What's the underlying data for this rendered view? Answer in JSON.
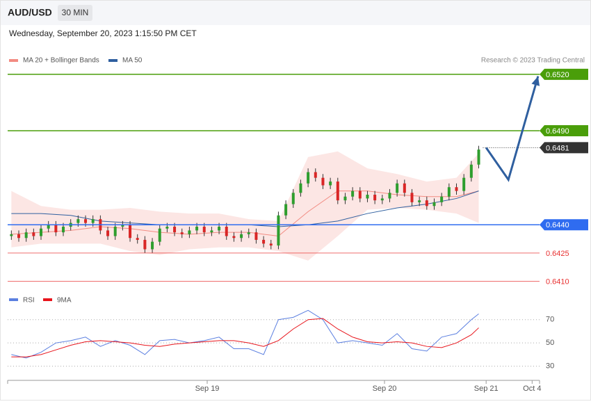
{
  "chart_data": [
    {
      "type": "candlestick",
      "title": "AUD/USD",
      "timeframe": "30 MIN",
      "subtitle": "Wednesday, September 20, 2023 1:15:50 PM CET",
      "credit": "Research © 2023 Trading Central",
      "up_color": "#2e9e2e",
      "down_color": "#d92626",
      "open": [
        0.6434,
        0.6435,
        0.6433,
        0.6436,
        0.6434,
        0.6438,
        0.644,
        0.6436,
        0.6439,
        0.6441,
        0.6443,
        0.6441,
        0.6443,
        0.6437,
        0.6434,
        0.6439,
        0.644,
        0.6433,
        0.6432,
        0.6427,
        0.6431,
        0.6438,
        0.6439,
        0.6436,
        0.6435,
        0.6437,
        0.6439,
        0.6436,
        0.6437,
        0.6439,
        0.6434,
        0.6433,
        0.6435,
        0.6436,
        0.6432,
        0.643,
        0.6429,
        0.6445,
        0.6451,
        0.6457,
        0.6462,
        0.6468,
        0.6465,
        0.6461,
        0.6463,
        0.6453,
        0.6455,
        0.6458,
        0.6454,
        0.6456,
        0.6453,
        0.6454,
        0.6457,
        0.6462,
        0.6457,
        0.6452,
        0.6453,
        0.645,
        0.6452,
        0.6455,
        0.646,
        0.6458,
        0.6465,
        0.6472
      ],
      "high": [
        0.6437,
        0.6437,
        0.6438,
        0.6438,
        0.644,
        0.6442,
        0.6442,
        0.6441,
        0.6443,
        0.6445,
        0.6445,
        0.6445,
        0.6445,
        0.6439,
        0.6441,
        0.6442,
        0.6442,
        0.6435,
        0.6434,
        0.6433,
        0.644,
        0.6441,
        0.6441,
        0.6438,
        0.6439,
        0.6441,
        0.6441,
        0.6439,
        0.6441,
        0.6441,
        0.6436,
        0.6437,
        0.6438,
        0.6438,
        0.6434,
        0.6432,
        0.6447,
        0.6453,
        0.6459,
        0.6464,
        0.647,
        0.647,
        0.6467,
        0.6465,
        0.6465,
        0.6457,
        0.646,
        0.646,
        0.6458,
        0.6458,
        0.6456,
        0.6459,
        0.6464,
        0.6464,
        0.6459,
        0.6455,
        0.6455,
        0.6454,
        0.6457,
        0.6462,
        0.6462,
        0.6467,
        0.6474,
        0.6482
      ],
      "low": [
        0.6432,
        0.6431,
        0.6431,
        0.6432,
        0.6432,
        0.6436,
        0.6434,
        0.6434,
        0.6437,
        0.6439,
        0.6439,
        0.6439,
        0.6435,
        0.6432,
        0.6432,
        0.6437,
        0.6431,
        0.643,
        0.6425,
        0.6425,
        0.6429,
        0.6436,
        0.6434,
        0.6433,
        0.6433,
        0.6435,
        0.6434,
        0.6434,
        0.6435,
        0.6432,
        0.6431,
        0.6431,
        0.6433,
        0.643,
        0.6428,
        0.6427,
        0.6427,
        0.6443,
        0.6449,
        0.6455,
        0.646,
        0.6463,
        0.6459,
        0.6459,
        0.6451,
        0.6451,
        0.6453,
        0.6452,
        0.6452,
        0.6451,
        0.6451,
        0.6452,
        0.6455,
        0.6455,
        0.645,
        0.645,
        0.6448,
        0.6448,
        0.645,
        0.6453,
        0.6456,
        0.6456,
        0.6463,
        0.647
      ],
      "close": [
        0.6435,
        0.6433,
        0.6436,
        0.6434,
        0.6438,
        0.644,
        0.6436,
        0.6439,
        0.6441,
        0.6443,
        0.6441,
        0.6443,
        0.6437,
        0.6434,
        0.6439,
        0.644,
        0.6433,
        0.6432,
        0.6427,
        0.6431,
        0.6438,
        0.6439,
        0.6436,
        0.6435,
        0.6437,
        0.6439,
        0.6436,
        0.6437,
        0.6439,
        0.6434,
        0.6433,
        0.6435,
        0.6436,
        0.6432,
        0.643,
        0.6429,
        0.6445,
        0.6451,
        0.6457,
        0.6462,
        0.6468,
        0.6465,
        0.6461,
        0.6463,
        0.6453,
        0.6455,
        0.6458,
        0.6454,
        0.6456,
        0.6453,
        0.6454,
        0.6457,
        0.6462,
        0.6457,
        0.6452,
        0.6453,
        0.645,
        0.6452,
        0.6455,
        0.646,
        0.6458,
        0.6465,
        0.6472,
        0.648
      ],
      "series": [
        {
          "name": "MA 20 + Bollinger Bands",
          "color": "#f28b82",
          "x": [
            0,
            4,
            8,
            12,
            16,
            20,
            24,
            28,
            32,
            36,
            40,
            44,
            48,
            52,
            56,
            60,
            63
          ],
          "values": [
            0.6435,
            0.6436,
            0.6437,
            0.6439,
            0.6438,
            0.6436,
            0.6435,
            0.6436,
            0.6436,
            0.6434,
            0.6447,
            0.6458,
            0.6458,
            0.6456,
            0.6455,
            0.6455,
            0.6458
          ],
          "upper": [
            0.6458,
            0.645,
            0.6448,
            0.6448,
            0.6449,
            0.6447,
            0.6446,
            0.6446,
            0.6443,
            0.6442,
            0.6476,
            0.6479,
            0.647,
            0.6467,
            0.6463,
            0.6465,
            0.6478
          ],
          "lower": [
            0.6428,
            0.643,
            0.643,
            0.643,
            0.6426,
            0.6424,
            0.6427,
            0.6428,
            0.6428,
            0.6426,
            0.6421,
            0.6434,
            0.6448,
            0.6449,
            0.6448,
            0.6446,
            0.6441
          ]
        },
        {
          "name": "MA 50",
          "color": "#2f5f9f",
          "x": [
            0,
            4,
            8,
            12,
            16,
            20,
            24,
            28,
            32,
            36,
            40,
            44,
            48,
            52,
            56,
            60,
            63
          ],
          "values": [
            0.6446,
            0.6446,
            0.6445,
            0.6442,
            0.6441,
            0.644,
            0.644,
            0.644,
            0.644,
            0.6439,
            0.644,
            0.6442,
            0.6446,
            0.6449,
            0.6451,
            0.6454,
            0.6458
          ]
        }
      ],
      "forecast": {
        "color": "#2f5f9f",
        "x": [
          64,
          67,
          71
        ],
        "values": [
          0.6481,
          0.6464,
          0.6519
        ]
      },
      "levels": [
        {
          "value": 0.652,
          "label": "0.6520",
          "color": "#4a9e0a",
          "tag": true,
          "style": "solid"
        },
        {
          "value": 0.649,
          "label": "0.6490",
          "color": "#4a9e0a",
          "tag": true,
          "style": "solid"
        },
        {
          "value": 0.6481,
          "label": "0.6481",
          "color": "#333333",
          "tag": true,
          "style": "dotted"
        },
        {
          "value": 0.644,
          "label": "0.6440",
          "color": "#2f6cf0",
          "tag": true,
          "style": "solid"
        },
        {
          "value": 0.6425,
          "label": "0.6425",
          "color": "#e83030",
          "tag": false,
          "style": "solid"
        },
        {
          "value": 0.641,
          "label": "0.6410",
          "color": "#e83030",
          "tag": false,
          "style": "solid"
        }
      ],
      "xlim": [
        -0.5,
        71.2
      ],
      "xticks": [
        {
          "value": 26.4,
          "label": "Sep 19"
        },
        {
          "value": 50.3,
          "label": "Sep 20"
        },
        {
          "value": 64,
          "label": "Sep 21"
        },
        {
          "value": 70.2,
          "label": "Oct 4"
        }
      ],
      "ylim": [
        0.64061,
        0.65244
      ]
    },
    {
      "type": "line",
      "x": [
        0,
        2,
        4,
        6,
        8,
        10,
        12,
        14,
        16,
        18,
        20,
        22,
        24,
        26,
        28,
        30,
        32,
        34,
        36,
        38,
        40,
        42,
        44,
        46,
        48,
        50,
        52,
        54,
        56,
        58,
        60,
        62,
        63
      ],
      "series": [
        {
          "name": "RSI",
          "color": "#5b7fe0",
          "values": [
            40,
            37,
            42,
            50,
            52,
            55,
            47,
            52,
            48,
            40,
            52,
            53,
            50,
            52,
            55,
            45,
            45,
            40,
            70,
            72,
            78,
            70,
            50,
            52,
            50,
            48,
            58,
            45,
            43,
            55,
            58,
            70,
            75
          ]
        },
        {
          "name": "9MA",
          "color": "#e8141b",
          "values": [
            38,
            38,
            40,
            44,
            48,
            51,
            52,
            51,
            50,
            48,
            47,
            49,
            50,
            51,
            52,
            52,
            50,
            47,
            52,
            62,
            70,
            71,
            62,
            55,
            51,
            50,
            51,
            50,
            47,
            46,
            50,
            57,
            63
          ]
        }
      ],
      "xlim": [
        -0.5,
        71.2
      ],
      "ylim": [
        22,
        80
      ],
      "yticks": [
        30,
        50,
        70
      ],
      "grid": true
    }
  ]
}
